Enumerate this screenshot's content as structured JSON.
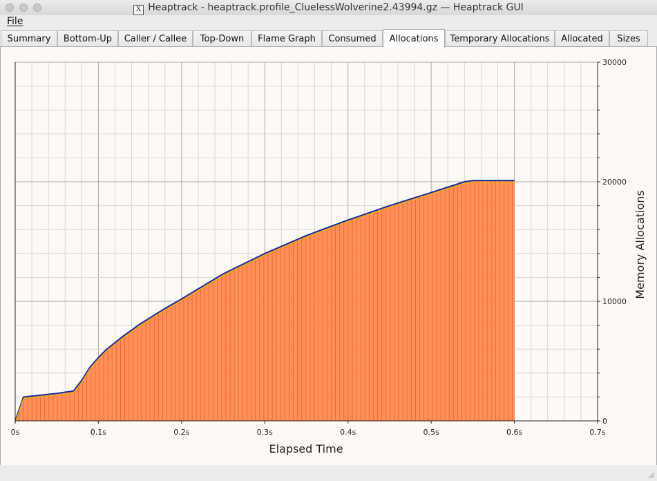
{
  "window": {
    "title": "Heaptrack - heaptrack.profile_CluelessWolverine2.43994.gz — Heaptrack GUI"
  },
  "menu": {
    "file": "File"
  },
  "tabs": [
    {
      "label": "Summary"
    },
    {
      "label": "Bottom-Up"
    },
    {
      "label": "Caller / Callee"
    },
    {
      "label": "Top-Down"
    },
    {
      "label": "Flame Graph"
    },
    {
      "label": "Consumed"
    },
    {
      "label": "Allocations",
      "active": true
    },
    {
      "label": "Temporary Allocations"
    },
    {
      "label": "Allocated"
    },
    {
      "label": "Sizes"
    }
  ],
  "colors": {
    "fill": "#ff8a52",
    "fill_stripe": "#f05a1e",
    "line": "#1a2ea0",
    "line_inner": "#e8b400"
  },
  "chart_data": {
    "type": "area",
    "xlabel": "Elapsed Time",
    "ylabel": "Memory Allocations",
    "x_ticks": [
      "0s",
      "0.1s",
      "0.2s",
      "0.3s",
      "0.4s",
      "0.5s",
      "0.6s",
      "0.7s"
    ],
    "y_ticks": [
      "0",
      "10000",
      "20000",
      "30000"
    ],
    "xlim": [
      0,
      0.7
    ],
    "ylim": [
      0,
      30000
    ],
    "grid": true,
    "y_axis_side": "right",
    "x": [
      0,
      0.01,
      0.05,
      0.07,
      0.08,
      0.09,
      0.1,
      0.11,
      0.13,
      0.15,
      0.18,
      0.2,
      0.25,
      0.3,
      0.35,
      0.4,
      0.45,
      0.5,
      0.54,
      0.55,
      0.6
    ],
    "series": [
      {
        "values": [
          0,
          2000,
          2300,
          2500,
          3400,
          4500,
          5300,
          6000,
          7100,
          8100,
          9400,
          10200,
          12300,
          14000,
          15500,
          16800,
          18000,
          19100,
          20000,
          20100,
          20100
        ]
      }
    ]
  }
}
